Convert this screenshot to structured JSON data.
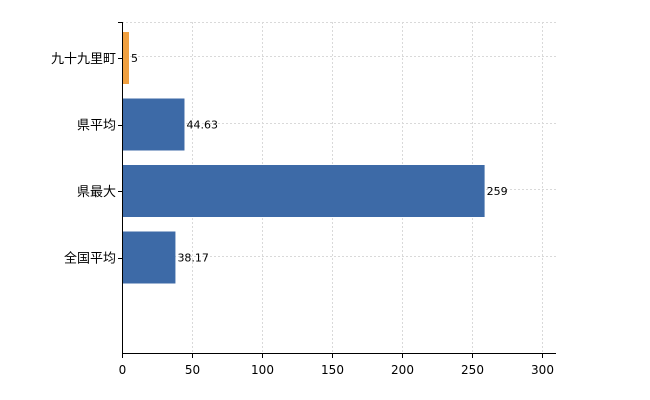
{
  "chart_data": {
    "type": "bar",
    "orientation": "horizontal",
    "categories": [
      "九十九里町",
      "県平均",
      "県最大",
      "全国平均"
    ],
    "values": [
      5,
      44.63,
      259,
      38.17
    ],
    "data_labels": [
      "5",
      "44.63",
      "259",
      "38.17"
    ],
    "bar_colors": [
      "#f0a040",
      "#3d6aa7",
      "#3d6aa7",
      "#3d6aa7"
    ],
    "xlim": [
      0,
      310
    ],
    "xticks": [
      0,
      50,
      100,
      150,
      200,
      250,
      300
    ],
    "grid": true,
    "title": "",
    "xlabel": "",
    "ylabel": ""
  }
}
